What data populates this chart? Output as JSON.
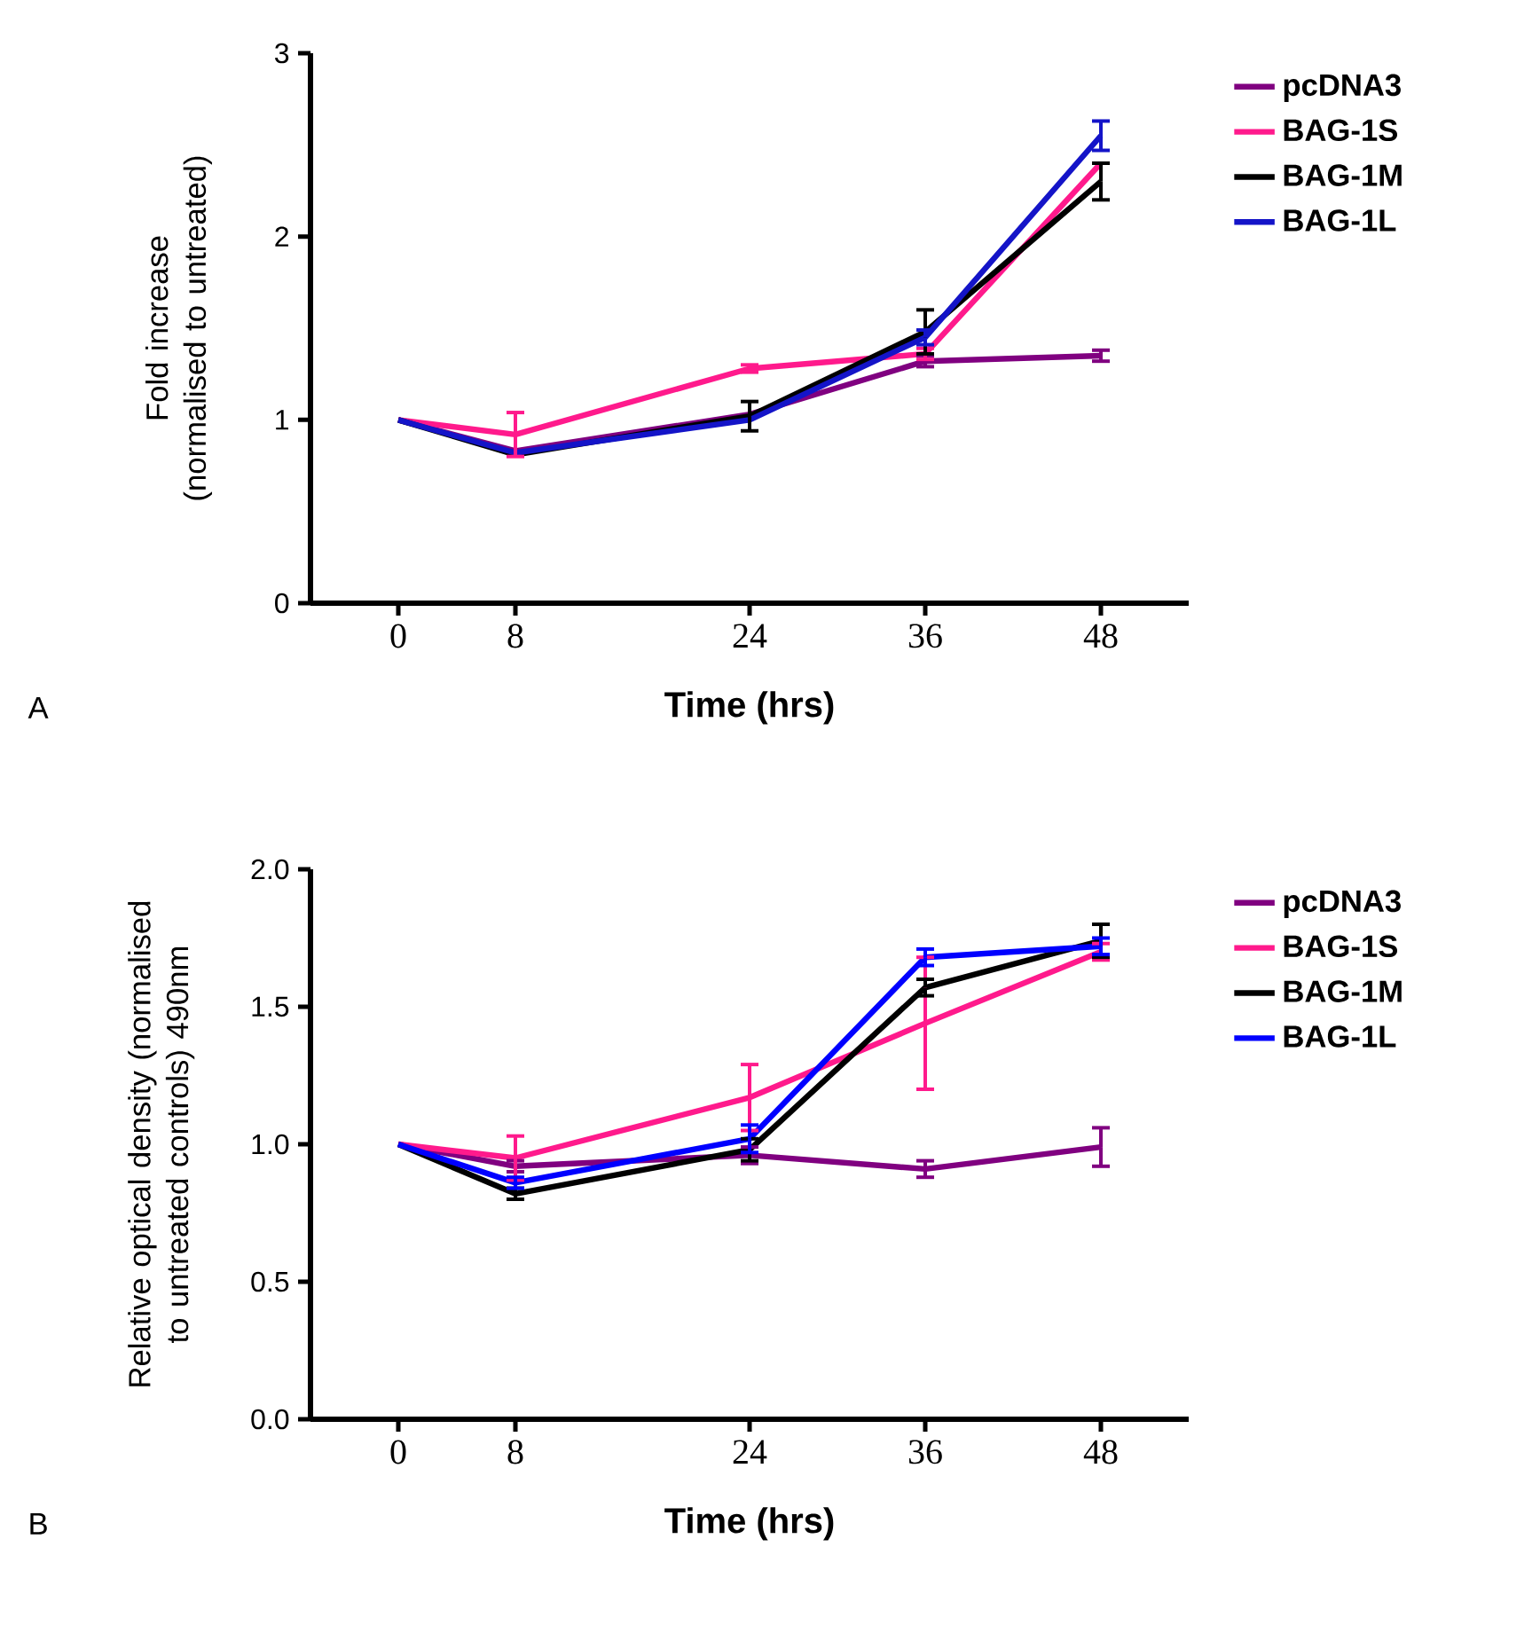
{
  "chart_data": [
    {
      "type": "line",
      "xlabel": "Time (hrs)",
      "ylabel": "Fold increase (normalised to untreated)",
      "annotations": [
        "A"
      ],
      "x": [
        0,
        8,
        24,
        36,
        48
      ],
      "xlim": [
        -6,
        54
      ],
      "xticks": [
        0,
        8,
        24,
        36,
        48
      ],
      "ylim": [
        0,
        3
      ],
      "yticks": [
        0,
        1,
        2,
        3
      ],
      "legend": "right",
      "marker": "none",
      "series": [
        {
          "name": "pcDNA3",
          "color": "#800080",
          "values": [
            1.0,
            0.83,
            1.03,
            1.32,
            1.35
          ],
          "errors": [
            null,
            null,
            null,
            0.03,
            0.03
          ]
        },
        {
          "name": "BAG-1S",
          "color": "#ff1a8c",
          "values": [
            1.0,
            0.92,
            1.28,
            1.36,
            2.4
          ],
          "errors": [
            null,
            0.12,
            0.02,
            0.03,
            null
          ]
        },
        {
          "name": "BAG-1M",
          "color": "#000000",
          "values": [
            1.0,
            0.81,
            1.02,
            1.48,
            2.3
          ],
          "errors": [
            null,
            null,
            0.08,
            0.12,
            0.1
          ]
        },
        {
          "name": "BAG-1L",
          "color": "#1414c8",
          "values": [
            1.0,
            0.82,
            1.0,
            1.45,
            2.55
          ],
          "errors": [
            null,
            null,
            null,
            0.04,
            0.08
          ]
        }
      ]
    },
    {
      "type": "line",
      "xlabel": "Time (hrs)",
      "ylabel": "Relative optical density (normalised to untreated controls) 490nm",
      "annotations": [
        "B"
      ],
      "x": [
        0,
        8,
        24,
        36,
        48
      ],
      "xlim": [
        -6,
        54
      ],
      "xticks": [
        0,
        8,
        24,
        36,
        48
      ],
      "ylim": [
        0,
        2
      ],
      "yticks": [
        {
          "value": 0,
          "label": "0.0"
        },
        {
          "value": 0.5,
          "label": "0.5"
        },
        {
          "value": 1,
          "label": "1.0"
        },
        {
          "value": 1.5,
          "label": "1.5"
        },
        {
          "value": 2,
          "label": "2.0"
        }
      ],
      "legend": "right",
      "marker": "none",
      "series": [
        {
          "name": "pcDNA3",
          "color": "#800080",
          "values": [
            1.0,
            0.92,
            0.96,
            0.91,
            0.99
          ],
          "errors": [
            null,
            0.02,
            0.03,
            0.03,
            0.07
          ]
        },
        {
          "name": "BAG-1S",
          "color": "#ff1a8c",
          "values": [
            1.0,
            0.95,
            1.17,
            1.44,
            1.7
          ],
          "errors": [
            null,
            0.08,
            0.12,
            0.24,
            0.03
          ]
        },
        {
          "name": "BAG-1M",
          "color": "#000000",
          "values": [
            1.0,
            0.82,
            0.98,
            1.57,
            1.74
          ],
          "errors": [
            null,
            0.02,
            0.04,
            0.03,
            0.06
          ]
        },
        {
          "name": "BAG-1L",
          "color": "#0000ff",
          "values": [
            1.0,
            0.86,
            1.02,
            1.68,
            1.72
          ],
          "errors": [
            null,
            0.02,
            0.05,
            0.03,
            0.03
          ]
        }
      ]
    }
  ]
}
